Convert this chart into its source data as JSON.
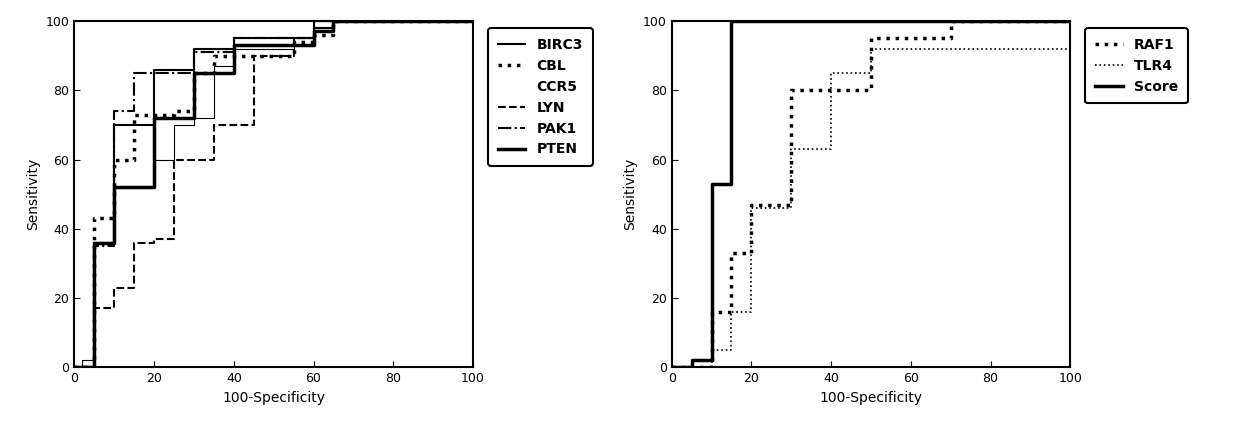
{
  "plot1": {
    "xlabel": "100-Specificity",
    "ylabel": "Sensitivity",
    "xlim": [
      0,
      100
    ],
    "ylim": [
      0,
      100
    ],
    "xticks": [
      0,
      20,
      40,
      60,
      80,
      100
    ],
    "yticks": [
      0,
      20,
      40,
      60,
      80,
      100
    ],
    "curves": {
      "BIRC3": {
        "x": [
          0,
          5,
          5,
          10,
          10,
          20,
          20,
          30,
          30,
          40,
          40,
          60,
          60,
          65,
          65,
          100
        ],
        "y": [
          0,
          0,
          36,
          36,
          70,
          70,
          86,
          86,
          92,
          92,
          95,
          95,
          98,
          98,
          100,
          100
        ],
        "linestyle": "solid",
        "linewidth": 1.5,
        "color": "#000000"
      },
      "CBL": {
        "x": [
          0,
          5,
          5,
          10,
          10,
          15,
          15,
          25,
          25,
          30,
          30,
          35,
          35,
          55,
          55,
          60,
          60,
          65,
          65,
          100
        ],
        "y": [
          0,
          0,
          43,
          43,
          60,
          60,
          73,
          73,
          74,
          74,
          85,
          85,
          90,
          90,
          94,
          94,
          96,
          96,
          100,
          100
        ],
        "linestyle": "dotted",
        "linewidth": 2.5,
        "color": "#000000"
      },
      "CCR5": {
        "x": [
          0,
          2,
          2,
          5,
          5,
          10,
          10,
          20,
          20,
          25,
          25,
          30,
          30,
          35,
          35,
          40,
          40,
          55,
          55,
          60,
          60,
          100
        ],
        "y": [
          0,
          0,
          2,
          2,
          36,
          36,
          52,
          52,
          60,
          60,
          70,
          70,
          72,
          72,
          87,
          87,
          92,
          92,
          95,
          95,
          100,
          100
        ],
        "linestyle": "solid",
        "linewidth": 0.8,
        "color": "#000000"
      },
      "LYN": {
        "x": [
          0,
          5,
          5,
          10,
          10,
          15,
          15,
          20,
          20,
          25,
          25,
          35,
          35,
          45,
          45,
          55,
          55,
          60,
          60,
          100
        ],
        "y": [
          0,
          0,
          17,
          17,
          23,
          23,
          36,
          36,
          37,
          37,
          60,
          60,
          70,
          70,
          90,
          90,
          95,
          95,
          100,
          100
        ],
        "linestyle": "dashed",
        "linewidth": 1.5,
        "color": "#000000"
      },
      "PAK1": {
        "x": [
          0,
          5,
          5,
          10,
          10,
          15,
          15,
          30,
          30,
          40,
          40,
          60,
          60,
          100
        ],
        "y": [
          0,
          0,
          35,
          35,
          74,
          74,
          85,
          85,
          91,
          91,
          95,
          95,
          100,
          100
        ],
        "linestyle": "dashdot",
        "linewidth": 1.5,
        "color": "#000000"
      },
      "PTEN": {
        "x": [
          0,
          5,
          5,
          10,
          10,
          20,
          20,
          30,
          30,
          40,
          40,
          60,
          60,
          65,
          65,
          100
        ],
        "y": [
          0,
          0,
          36,
          36,
          52,
          52,
          72,
          72,
          85,
          85,
          93,
          93,
          97,
          97,
          100,
          100
        ],
        "linestyle": "solid",
        "linewidth": 2.5,
        "color": "#000000"
      }
    },
    "legend_order": [
      "BIRC3",
      "CBL",
      "CCR5",
      "LYN",
      "PAK1",
      "PTEN"
    ],
    "legend_styles": {
      "BIRC3": {
        "linestyle": "solid",
        "linewidth": 1.5,
        "show_line": true
      },
      "CBL": {
        "linestyle": "dotted",
        "linewidth": 2.5,
        "show_line": true
      },
      "CCR5": {
        "linestyle": "solid",
        "linewidth": 0.8,
        "show_line": false
      },
      "LYN": {
        "linestyle": "dashed",
        "linewidth": 1.5,
        "show_line": true
      },
      "PAK1": {
        "linestyle": "dashdot",
        "linewidth": 1.5,
        "show_line": true
      },
      "PTEN": {
        "linestyle": "solid",
        "linewidth": 2.5,
        "show_line": true
      }
    }
  },
  "plot2": {
    "xlabel": "100-Specificity",
    "ylabel": "Sensitivity",
    "xlim": [
      0,
      100
    ],
    "ylim": [
      0,
      100
    ],
    "xticks": [
      0,
      20,
      40,
      60,
      80,
      100
    ],
    "yticks": [
      0,
      20,
      40,
      60,
      80,
      100
    ],
    "curves": {
      "RAF1": {
        "x": [
          0,
          10,
          10,
          15,
          15,
          20,
          20,
          30,
          30,
          50,
          50,
          70,
          70,
          100
        ],
        "y": [
          0,
          0,
          16,
          16,
          33,
          33,
          47,
          47,
          80,
          80,
          95,
          95,
          100,
          100
        ],
        "linestyle": "dotted",
        "linewidth": 2.5,
        "color": "#000000"
      },
      "TLR4": {
        "x": [
          0,
          10,
          10,
          15,
          15,
          20,
          20,
          30,
          30,
          40,
          40,
          50,
          50,
          100
        ],
        "y": [
          0,
          0,
          5,
          5,
          16,
          16,
          46,
          46,
          63,
          63,
          85,
          85,
          92,
          92
        ],
        "linestyle": "dotted",
        "linewidth": 1.2,
        "color": "#000000"
      },
      "Score": {
        "x": [
          0,
          5,
          5,
          10,
          10,
          15,
          15,
          100
        ],
        "y": [
          0,
          0,
          2,
          2,
          53,
          53,
          100,
          100
        ],
        "linestyle": "solid",
        "linewidth": 2.5,
        "color": "#000000"
      }
    },
    "legend_order": [
      "RAF1",
      "TLR4",
      "Score"
    ],
    "legend_styles": {
      "RAF1": {
        "linestyle": "dotted",
        "linewidth": 2.5,
        "show_line": true
      },
      "TLR4": {
        "linestyle": "dotted",
        "linewidth": 1.2,
        "show_line": true
      },
      "Score": {
        "linestyle": "solid",
        "linewidth": 2.5,
        "show_line": true
      }
    }
  },
  "tick_fontsize": 9,
  "label_fontsize": 10,
  "legend_fontsize": 10,
  "background_color": "#ffffff"
}
